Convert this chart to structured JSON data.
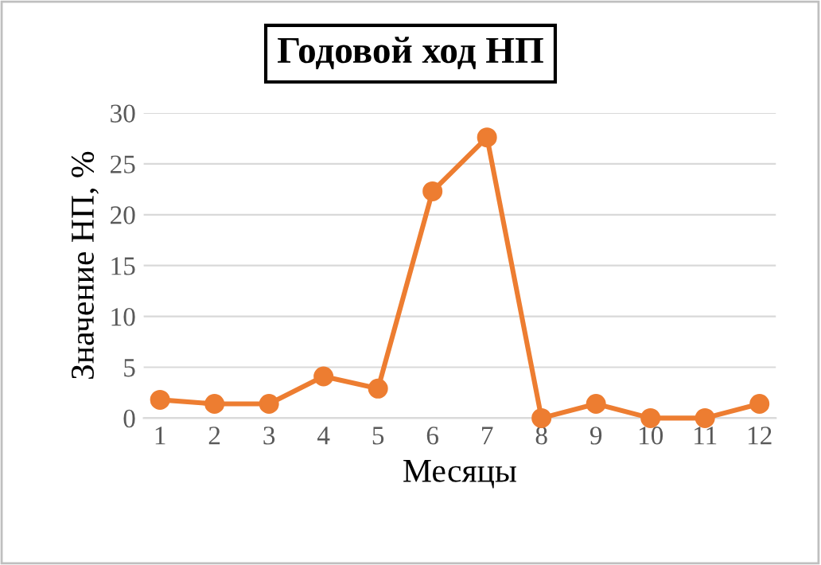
{
  "chart_data": {
    "type": "line",
    "title": "Годовой ход НП",
    "xlabel": "Месяцы",
    "ylabel": "Значение НП, %",
    "categories": [
      "1",
      "2",
      "3",
      "4",
      "5",
      "6",
      "7",
      "8",
      "9",
      "10",
      "11",
      "12"
    ],
    "series": [
      {
        "color": "#ed7d31",
        "values": [
          1.8,
          1.4,
          1.4,
          4.1,
          2.9,
          22.3,
          27.6,
          0,
          1.4,
          0,
          0,
          1.4
        ]
      }
    ],
    "ylim": [
      0,
      30
    ],
    "yticks": [
      0,
      5,
      10,
      15,
      20,
      25,
      30
    ],
    "grid": "y",
    "marker": "circle",
    "line_style": "solid",
    "legend": false
  }
}
